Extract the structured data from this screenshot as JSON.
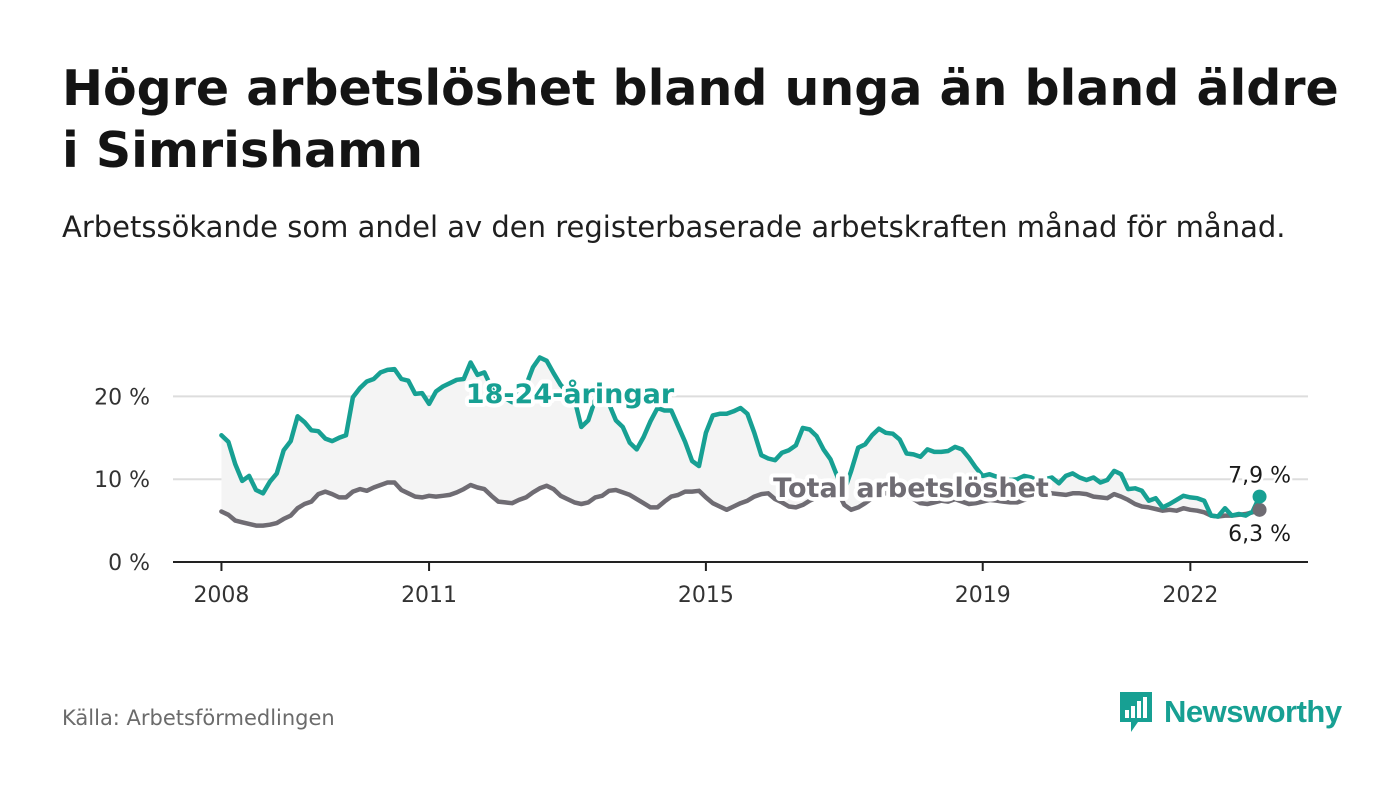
{
  "title": "Högre arbetslöshet bland unga än bland äldre i Simrishamn",
  "subtitle": "Arbetssökande som andel av den registerbaserade arbetskraften månad för månad.",
  "source": "Källa: Arbetsförmedlingen",
  "brand": {
    "name": "Newsworthy",
    "icon": "newsworthy-bar-chart-logo-icon",
    "color": "#17a093"
  },
  "colors": {
    "youth": "#17a093",
    "total": "#6f6c73",
    "band": "#f4f4f4",
    "grid": "#dddddd",
    "axis": "#222222"
  },
  "chart_data": {
    "type": "line",
    "title": "Högre arbetslöshet bland unga än bland äldre i Simrishamn",
    "xlabel": "",
    "ylabel": "",
    "x_tick_labels": [
      "2008",
      "2011",
      "2015",
      "2019",
      "2022"
    ],
    "x_tick_values": [
      2008,
      2011,
      2015,
      2019,
      2022
    ],
    "y_tick_labels": [
      "0 %",
      "10 %",
      "20 %"
    ],
    "y_tick_values": [
      0,
      10,
      20
    ],
    "xlim": [
      2007.3,
      2023.7
    ],
    "ylim": [
      0,
      25
    ],
    "grid": true,
    "series": [
      {
        "name": "18-24-åringar",
        "label": "18-24-åringar",
        "end_label": "7,9 %",
        "end_value": 7.9,
        "points": [
          [
            2008.0,
            15.3
          ],
          [
            2008.1,
            14.5
          ],
          [
            2008.2,
            11.8
          ],
          [
            2008.3,
            9.8
          ],
          [
            2008.4,
            10.4
          ],
          [
            2008.5,
            8.7
          ],
          [
            2008.6,
            8.3
          ],
          [
            2008.7,
            9.7
          ],
          [
            2008.8,
            10.7
          ],
          [
            2008.9,
            13.5
          ],
          [
            2009.0,
            14.6
          ],
          [
            2009.1,
            17.6
          ],
          [
            2009.2,
            16.9
          ],
          [
            2009.3,
            15.9
          ],
          [
            2009.4,
            15.8
          ],
          [
            2009.5,
            14.9
          ],
          [
            2009.6,
            14.6
          ],
          [
            2009.7,
            15.0
          ],
          [
            2009.8,
            15.3
          ],
          [
            2009.9,
            19.9
          ],
          [
            2010.0,
            21.0
          ],
          [
            2010.1,
            21.8
          ],
          [
            2010.2,
            22.1
          ],
          [
            2010.3,
            22.9
          ],
          [
            2010.4,
            23.2
          ],
          [
            2010.5,
            23.3
          ],
          [
            2010.6,
            22.1
          ],
          [
            2010.7,
            21.9
          ],
          [
            2010.8,
            20.3
          ],
          [
            2010.9,
            20.4
          ],
          [
            2011.0,
            19.1
          ],
          [
            2011.1,
            20.6
          ],
          [
            2011.2,
            21.2
          ],
          [
            2011.3,
            21.6
          ],
          [
            2011.4,
            22.0
          ],
          [
            2011.5,
            22.1
          ],
          [
            2011.6,
            24.1
          ],
          [
            2011.7,
            22.6
          ],
          [
            2011.8,
            22.9
          ],
          [
            2011.9,
            21.1
          ],
          [
            2012.0,
            19.3
          ],
          [
            2012.1,
            19.8
          ],
          [
            2012.2,
            19.3
          ],
          [
            2012.3,
            20.3
          ],
          [
            2012.4,
            21.3
          ],
          [
            2012.5,
            23.5
          ],
          [
            2012.6,
            24.7
          ],
          [
            2012.7,
            24.3
          ],
          [
            2012.8,
            22.8
          ],
          [
            2012.9,
            21.4
          ],
          [
            2013.0,
            20.5
          ],
          [
            2013.1,
            19.7
          ],
          [
            2013.2,
            16.3
          ],
          [
            2013.3,
            17.1
          ],
          [
            2013.4,
            19.6
          ],
          [
            2013.5,
            21.3
          ],
          [
            2013.6,
            19.1
          ],
          [
            2013.7,
            17.1
          ],
          [
            2013.8,
            16.3
          ],
          [
            2013.9,
            14.4
          ],
          [
            2014.0,
            13.6
          ],
          [
            2014.1,
            15.1
          ],
          [
            2014.2,
            17.0
          ],
          [
            2014.3,
            18.6
          ],
          [
            2014.4,
            18.3
          ],
          [
            2014.5,
            18.3
          ],
          [
            2014.6,
            16.4
          ],
          [
            2014.7,
            14.5
          ],
          [
            2014.8,
            12.2
          ],
          [
            2014.9,
            11.6
          ],
          [
            2015.0,
            15.6
          ],
          [
            2015.1,
            17.7
          ],
          [
            2015.2,
            17.9
          ],
          [
            2015.3,
            17.9
          ],
          [
            2015.4,
            18.2
          ],
          [
            2015.5,
            18.6
          ],
          [
            2015.6,
            17.9
          ],
          [
            2015.7,
            15.6
          ],
          [
            2015.8,
            12.9
          ],
          [
            2015.9,
            12.5
          ],
          [
            2016.0,
            12.3
          ],
          [
            2016.1,
            13.2
          ],
          [
            2016.2,
            13.5
          ],
          [
            2016.3,
            14.1
          ],
          [
            2016.4,
            16.2
          ],
          [
            2016.5,
            16.0
          ],
          [
            2016.6,
            15.2
          ],
          [
            2016.7,
            13.6
          ],
          [
            2016.8,
            12.4
          ],
          [
            2016.9,
            10.3
          ],
          [
            2017.0,
            8.6
          ],
          [
            2017.1,
            11.0
          ],
          [
            2017.2,
            13.8
          ],
          [
            2017.3,
            14.2
          ],
          [
            2017.4,
            15.3
          ],
          [
            2017.5,
            16.1
          ],
          [
            2017.6,
            15.6
          ],
          [
            2017.7,
            15.5
          ],
          [
            2017.8,
            14.8
          ],
          [
            2017.9,
            13.1
          ],
          [
            2018.0,
            13.0
          ],
          [
            2018.1,
            12.7
          ],
          [
            2018.2,
            13.6
          ],
          [
            2018.3,
            13.3
          ],
          [
            2018.4,
            13.3
          ],
          [
            2018.5,
            13.4
          ],
          [
            2018.6,
            13.9
          ],
          [
            2018.7,
            13.6
          ],
          [
            2018.8,
            12.6
          ],
          [
            2018.9,
            11.4
          ],
          [
            2019.0,
            10.4
          ],
          [
            2019.1,
            10.6
          ],
          [
            2019.2,
            10.3
          ],
          [
            2019.3,
            10.1
          ],
          [
            2019.4,
            9.9
          ],
          [
            2019.5,
            10.0
          ],
          [
            2019.6,
            10.4
          ],
          [
            2019.7,
            10.2
          ],
          [
            2019.8,
            9.8
          ],
          [
            2019.9,
            10.0
          ],
          [
            2020.0,
            10.2
          ],
          [
            2020.1,
            9.5
          ],
          [
            2020.2,
            10.4
          ],
          [
            2020.3,
            10.7
          ],
          [
            2020.4,
            10.2
          ],
          [
            2020.5,
            9.9
          ],
          [
            2020.6,
            10.2
          ],
          [
            2020.7,
            9.6
          ],
          [
            2020.8,
            9.9
          ],
          [
            2020.9,
            11.0
          ],
          [
            2021.0,
            10.6
          ],
          [
            2021.1,
            8.8
          ],
          [
            2021.2,
            8.9
          ],
          [
            2021.3,
            8.6
          ],
          [
            2021.4,
            7.4
          ],
          [
            2021.5,
            7.7
          ],
          [
            2021.6,
            6.6
          ],
          [
            2021.7,
            7.0
          ],
          [
            2021.8,
            7.5
          ],
          [
            2021.9,
            8.0
          ],
          [
            2022.0,
            7.8
          ],
          [
            2022.1,
            7.7
          ],
          [
            2022.2,
            7.4
          ],
          [
            2022.3,
            5.6
          ],
          [
            2022.4,
            5.5
          ],
          [
            2022.5,
            6.5
          ],
          [
            2022.6,
            5.6
          ],
          [
            2022.7,
            5.8
          ],
          [
            2022.8,
            5.6
          ],
          [
            2022.9,
            6.1
          ],
          [
            2023.0,
            7.9
          ]
        ]
      },
      {
        "name": "Total arbetslöshet",
        "label": "Total arbetslöshet",
        "end_label": "6,3 %",
        "end_value": 6.3,
        "points": [
          [
            2008.0,
            6.1
          ],
          [
            2008.1,
            5.7
          ],
          [
            2008.2,
            5.0
          ],
          [
            2008.3,
            4.8
          ],
          [
            2008.4,
            4.6
          ],
          [
            2008.5,
            4.4
          ],
          [
            2008.6,
            4.4
          ],
          [
            2008.7,
            4.5
          ],
          [
            2008.8,
            4.7
          ],
          [
            2008.9,
            5.2
          ],
          [
            2009.0,
            5.6
          ],
          [
            2009.1,
            6.5
          ],
          [
            2009.2,
            7.0
          ],
          [
            2009.3,
            7.3
          ],
          [
            2009.4,
            8.2
          ],
          [
            2009.5,
            8.5
          ],
          [
            2009.6,
            8.2
          ],
          [
            2009.7,
            7.8
          ],
          [
            2009.8,
            7.8
          ],
          [
            2009.9,
            8.5
          ],
          [
            2010.0,
            8.8
          ],
          [
            2010.1,
            8.6
          ],
          [
            2010.2,
            9.0
          ],
          [
            2010.3,
            9.3
          ],
          [
            2010.4,
            9.6
          ],
          [
            2010.5,
            9.6
          ],
          [
            2010.6,
            8.7
          ],
          [
            2010.7,
            8.3
          ],
          [
            2010.8,
            7.9
          ],
          [
            2010.9,
            7.8
          ],
          [
            2011.0,
            8.0
          ],
          [
            2011.1,
            7.9
          ],
          [
            2011.2,
            8.0
          ],
          [
            2011.3,
            8.1
          ],
          [
            2011.4,
            8.4
          ],
          [
            2011.5,
            8.8
          ],
          [
            2011.6,
            9.3
          ],
          [
            2011.7,
            9.0
          ],
          [
            2011.8,
            8.8
          ],
          [
            2011.9,
            8.0
          ],
          [
            2012.0,
            7.3
          ],
          [
            2012.1,
            7.2
          ],
          [
            2012.2,
            7.1
          ],
          [
            2012.3,
            7.5
          ],
          [
            2012.4,
            7.8
          ],
          [
            2012.5,
            8.4
          ],
          [
            2012.6,
            8.9
          ],
          [
            2012.7,
            9.2
          ],
          [
            2012.8,
            8.8
          ],
          [
            2012.9,
            8.0
          ],
          [
            2013.0,
            7.6
          ],
          [
            2013.1,
            7.2
          ],
          [
            2013.2,
            7.0
          ],
          [
            2013.3,
            7.2
          ],
          [
            2013.4,
            7.8
          ],
          [
            2013.5,
            8.0
          ],
          [
            2013.6,
            8.6
          ],
          [
            2013.7,
            8.7
          ],
          [
            2013.8,
            8.4
          ],
          [
            2013.9,
            8.1
          ],
          [
            2014.0,
            7.6
          ],
          [
            2014.1,
            7.1
          ],
          [
            2014.2,
            6.6
          ],
          [
            2014.3,
            6.6
          ],
          [
            2014.4,
            7.3
          ],
          [
            2014.5,
            7.9
          ],
          [
            2014.6,
            8.1
          ],
          [
            2014.7,
            8.5
          ],
          [
            2014.8,
            8.5
          ],
          [
            2014.9,
            8.6
          ],
          [
            2015.0,
            7.8
          ],
          [
            2015.1,
            7.1
          ],
          [
            2015.2,
            6.7
          ],
          [
            2015.3,
            6.3
          ],
          [
            2015.4,
            6.7
          ],
          [
            2015.5,
            7.1
          ],
          [
            2015.6,
            7.4
          ],
          [
            2015.7,
            7.9
          ],
          [
            2015.8,
            8.2
          ],
          [
            2015.9,
            8.3
          ],
          [
            2016.0,
            7.6
          ],
          [
            2016.1,
            7.2
          ],
          [
            2016.2,
            6.7
          ],
          [
            2016.3,
            6.6
          ],
          [
            2016.4,
            6.9
          ],
          [
            2016.5,
            7.4
          ],
          [
            2016.6,
            7.8
          ],
          [
            2016.7,
            8.2
          ],
          [
            2016.8,
            8.5
          ],
          [
            2016.9,
            8.6
          ],
          [
            2017.0,
            6.9
          ],
          [
            2017.1,
            6.3
          ],
          [
            2017.2,
            6.6
          ],
          [
            2017.3,
            7.1
          ],
          [
            2017.4,
            7.7
          ],
          [
            2017.5,
            8.1
          ],
          [
            2017.6,
            8.3
          ],
          [
            2017.7,
            8.5
          ],
          [
            2017.8,
            8.6
          ],
          [
            2017.9,
            8.1
          ],
          [
            2018.0,
            7.6
          ],
          [
            2018.1,
            7.1
          ],
          [
            2018.2,
            7.0
          ],
          [
            2018.3,
            7.2
          ],
          [
            2018.4,
            7.4
          ],
          [
            2018.5,
            7.3
          ],
          [
            2018.6,
            7.6
          ],
          [
            2018.7,
            7.3
          ],
          [
            2018.8,
            7.0
          ],
          [
            2018.9,
            7.1
          ],
          [
            2019.0,
            7.3
          ],
          [
            2019.1,
            7.5
          ],
          [
            2019.2,
            7.4
          ],
          [
            2019.3,
            7.3
          ],
          [
            2019.4,
            7.2
          ],
          [
            2019.5,
            7.2
          ],
          [
            2019.6,
            7.5
          ],
          [
            2019.7,
            7.7
          ],
          [
            2019.8,
            8.0
          ],
          [
            2019.9,
            8.1
          ],
          [
            2020.0,
            8.3
          ],
          [
            2020.1,
            8.2
          ],
          [
            2020.2,
            8.1
          ],
          [
            2020.3,
            8.3
          ],
          [
            2020.4,
            8.3
          ],
          [
            2020.5,
            8.2
          ],
          [
            2020.6,
            7.9
          ],
          [
            2020.7,
            7.8
          ],
          [
            2020.8,
            7.7
          ],
          [
            2020.9,
            8.2
          ],
          [
            2021.0,
            7.9
          ],
          [
            2021.1,
            7.5
          ],
          [
            2021.2,
            7.0
          ],
          [
            2021.3,
            6.7
          ],
          [
            2021.4,
            6.6
          ],
          [
            2021.5,
            6.4
          ],
          [
            2021.6,
            6.2
          ],
          [
            2021.7,
            6.3
          ],
          [
            2021.8,
            6.2
          ],
          [
            2021.9,
            6.5
          ],
          [
            2022.0,
            6.3
          ],
          [
            2022.1,
            6.2
          ],
          [
            2022.2,
            6.0
          ],
          [
            2022.3,
            5.6
          ],
          [
            2022.4,
            5.5
          ],
          [
            2022.5,
            5.6
          ],
          [
            2022.6,
            5.6
          ],
          [
            2022.7,
            5.7
          ],
          [
            2022.8,
            5.8
          ],
          [
            2022.9,
            6.0
          ],
          [
            2023.0,
            6.3
          ]
        ]
      }
    ]
  }
}
